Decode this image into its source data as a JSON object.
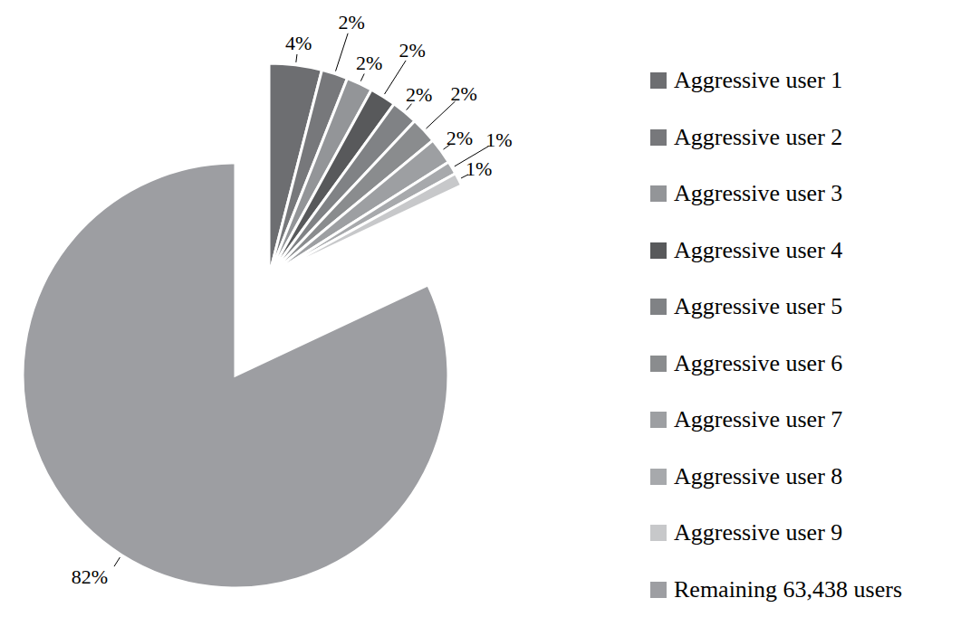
{
  "chart_data": {
    "type": "pie",
    "categories": [
      "Aggressive user 1",
      "Aggressive user 2",
      "Aggressive user 3",
      "Aggressive user 4",
      "Aggressive user 5",
      "Aggressive user 6",
      "Aggressive user 7",
      "Aggressive user 8",
      "Aggressive user 9",
      "Remaining 63,438 users"
    ],
    "values": [
      4,
      2,
      2,
      2,
      2,
      2,
      2,
      1,
      1,
      82
    ],
    "value_labels": [
      "4%",
      "2%",
      "2%",
      "2%",
      "2%",
      "2%",
      "2%",
      "1%",
      "1%",
      "82%"
    ],
    "colors": [
      "#6d6e71",
      "#77787b",
      "#939598",
      "#58595b",
      "#808285",
      "#8a8c8e",
      "#9d9fa2",
      "#a7a9ac",
      "#c7c8ca",
      "#9d9ea2"
    ],
    "legend": "right"
  }
}
